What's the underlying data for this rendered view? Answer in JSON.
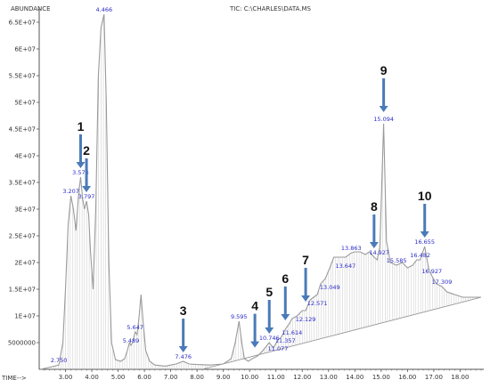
{
  "header": {
    "y_axis_title": "ABUNDANCE",
    "tic_title": "TIC: C:\\CHARLES\\DATA.MS",
    "x_axis_title": "TIME-->"
  },
  "colors": {
    "trace": "#9a9a9a",
    "baseline": "#8c8c8c",
    "axis": "#555555",
    "peak_label": "#2a2ac8",
    "arrow": "#4a7ab8",
    "annotation": "#111111"
  },
  "chart_data": {
    "type": "line",
    "title": "TIC: C:\\CHARLES\\DATA.MS",
    "xlabel": "TIME-->",
    "ylabel": "ABUNDANCE",
    "xlim": [
      2.0,
      18.9
    ],
    "ylim": [
      0,
      67500000
    ],
    "x_ticks": [
      "3.00",
      "4.00",
      "5.00",
      "6.00",
      "7.00",
      "8.00",
      "9.00",
      "10.00",
      "11.00",
      "12.00",
      "13.00",
      "14.00",
      "15.00",
      "16.00",
      "17.00",
      "18.00"
    ],
    "y_ticks": [
      "5000000",
      "1E+07",
      "1.5E+07",
      "2E+07",
      "2.5E+07",
      "3E+07",
      "3.5E+07",
      "4E+07",
      "4.5E+07",
      "5E+07",
      "5.5E+07",
      "6E+07",
      "6.5E+07"
    ],
    "series": [
      {
        "x": [
          2.05,
          2.5,
          2.75,
          2.9,
          3.0,
          3.1,
          3.207,
          3.3,
          3.4,
          3.5,
          3.574,
          3.65,
          3.72,
          3.797,
          3.88,
          3.95,
          4.05,
          4.15,
          4.25,
          4.35,
          4.466,
          4.55,
          4.65,
          4.75,
          4.9,
          5.1,
          5.25,
          5.35,
          5.43,
          5.489,
          5.55,
          5.647,
          5.72,
          5.8,
          5.87,
          5.95,
          6.05,
          6.2,
          6.4,
          6.6,
          6.8,
          7.0,
          7.2,
          7.476,
          7.7,
          8.0,
          8.5,
          9.0,
          9.3,
          9.45,
          9.595,
          9.7,
          9.8,
          9.95,
          10.1,
          10.3,
          10.5,
          10.746,
          10.9,
          11.077,
          11.2,
          11.357,
          11.5,
          11.614,
          11.8,
          12.0,
          12.129,
          12.3,
          12.571,
          12.7,
          12.877,
          13.049,
          13.2,
          13.4,
          13.647,
          13.863,
          14.0,
          14.2,
          14.4,
          14.55,
          14.73,
          14.85,
          14.95,
          15.094,
          15.2,
          15.35,
          15.585,
          15.8,
          16.0,
          16.2,
          16.35,
          16.482,
          16.655,
          16.8,
          16.927,
          17.1,
          17.309,
          17.5,
          17.8,
          18.1,
          18.4,
          18.8
        ],
        "y": [
          0,
          500000,
          800000,
          5000000,
          15000000,
          27000000,
          32500000,
          30000000,
          26000000,
          33000000,
          36000000,
          32000000,
          30000000,
          31500000,
          29000000,
          22000000,
          15000000,
          30000000,
          55000000,
          64000000,
          66500000,
          50000000,
          20000000,
          5000000,
          1800000,
          1500000,
          2000000,
          3500000,
          5000000,
          4500000,
          5000000,
          7000000,
          6500000,
          10000000,
          14000000,
          9000000,
          3500000,
          1500000,
          800000,
          700000,
          600000,
          800000,
          1000000,
          1500000,
          1000000,
          900000,
          800000,
          1000000,
          2000000,
          5000000,
          9000000,
          5000000,
          2000000,
          1500000,
          2000000,
          2500000,
          3500000,
          5000000,
          4000000,
          5500000,
          6000000,
          7500000,
          8500000,
          9500000,
          10000000,
          11000000,
          11000000,
          13000000,
          14000000,
          16000000,
          17000000,
          19000000,
          21000000,
          21000000,
          21000000,
          21800000,
          22000000,
          22000000,
          21500000,
          22000000,
          21000000,
          20500000,
          23000000,
          46000000,
          24000000,
          20000000,
          19500000,
          20000000,
          19000000,
          19500000,
          20500000,
          20500000,
          23000000,
          19000000,
          17500000,
          16000000,
          15500000,
          14500000,
          14000000,
          13500000,
          13500000,
          13500000
        ]
      }
    ],
    "peak_labels": [
      {
        "text": "2.750",
        "x": 2.75,
        "y": 800000
      },
      {
        "text": "3.207",
        "x": 3.207,
        "y": 32500000
      },
      {
        "text": "3.574",
        "x": 3.574,
        "y": 36000000
      },
      {
        "text": "3.797",
        "x": 3.797,
        "y": 31500000
      },
      {
        "text": "4.466",
        "x": 4.466,
        "y": 66500000
      },
      {
        "text": "5.489",
        "x": 5.489,
        "y": 4500000
      },
      {
        "text": "5.647",
        "x": 5.647,
        "y": 7000000
      },
      {
        "text": "7.476",
        "x": 7.476,
        "y": 1500000
      },
      {
        "text": "9.595",
        "x": 9.595,
        "y": 9000000
      },
      {
        "text": "10.746",
        "x": 10.746,
        "y": 5000000
      },
      {
        "text": "11.077",
        "x": 11.077,
        "y": 3000000
      },
      {
        "text": "11.357",
        "x": 11.357,
        "y": 4500000
      },
      {
        "text": "11.614",
        "x": 11.614,
        "y": 6000000
      },
      {
        "text": "12.129",
        "x": 12.129,
        "y": 8500000
      },
      {
        "text": "12.571",
        "x": 12.571,
        "y": 11500000
      },
      {
        "text": "13.049",
        "x": 13.049,
        "y": 14500000
      },
      {
        "text": "13.647",
        "x": 13.647,
        "y": 18500000
      },
      {
        "text": "13.863",
        "x": 13.863,
        "y": 21800000
      },
      {
        "text": "14.927",
        "x": 14.927,
        "y": 21000000
      },
      {
        "text": "15.094",
        "x": 15.094,
        "y": 46000000
      },
      {
        "text": "15.585",
        "x": 15.585,
        "y": 19500000
      },
      {
        "text": "16.482",
        "x": 16.482,
        "y": 20500000
      },
      {
        "text": "16.655",
        "x": 16.655,
        "y": 23000000
      },
      {
        "text": "16.927",
        "x": 16.927,
        "y": 17500000
      },
      {
        "text": "17.309",
        "x": 17.309,
        "y": 15500000
      }
    ],
    "annotations": [
      {
        "label": "1",
        "x": 3.574,
        "y": 36000000
      },
      {
        "label": "2",
        "x": 3.797,
        "y": 31500000
      },
      {
        "label": "3",
        "x": 7.476,
        "y": 1500000
      },
      {
        "label": "4",
        "x": 10.2,
        "y": 2400000
      },
      {
        "label": "5",
        "x": 10.746,
        "y": 5000000
      },
      {
        "label": "6",
        "x": 11.357,
        "y": 7500000
      },
      {
        "label": "7",
        "x": 12.129,
        "y": 11000000
      },
      {
        "label": "8",
        "x": 14.73,
        "y": 21000000
      },
      {
        "label": "9",
        "x": 15.094,
        "y": 46500000
      },
      {
        "label": "10",
        "x": 16.655,
        "y": 23000000
      }
    ],
    "baseline": {
      "x": [
        8.2,
        18.8
      ],
      "y": [
        0,
        13500000
      ]
    }
  }
}
